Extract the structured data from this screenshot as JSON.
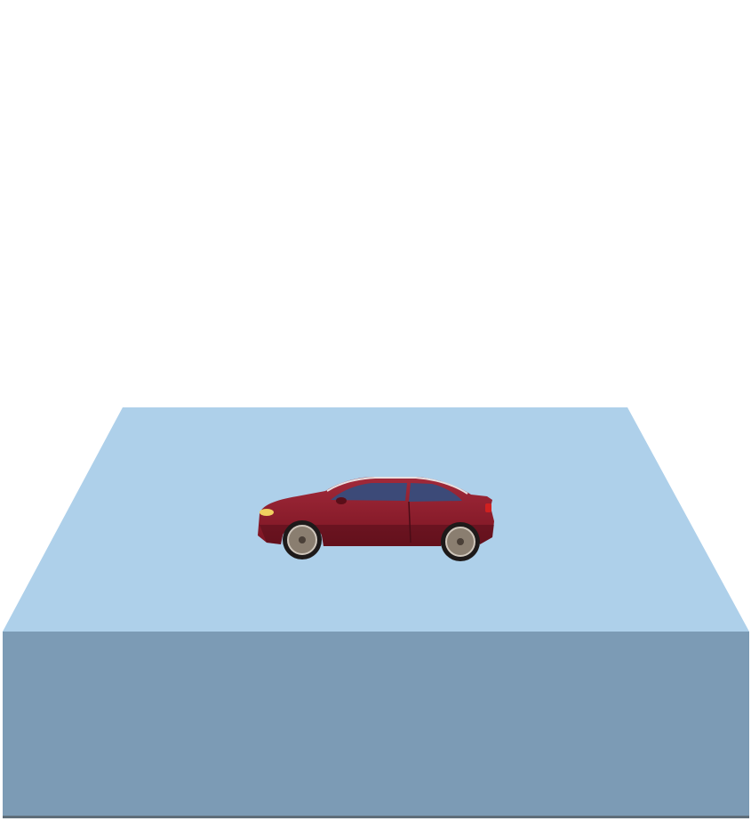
{
  "scene": {
    "background_color": "#ffffff",
    "platform": {
      "top_color": "#aed0ea",
      "front_color": "#7c9bb5",
      "bottom_edge_color": "#5f6e7a"
    },
    "car": {
      "icon": "car-icon",
      "body_color": "#7a1422",
      "body_highlight_color": "#a22a3a",
      "window_color": "#3c4a78",
      "wheel_color": "#8a7e70",
      "tire_color": "#1e1a1a"
    }
  }
}
